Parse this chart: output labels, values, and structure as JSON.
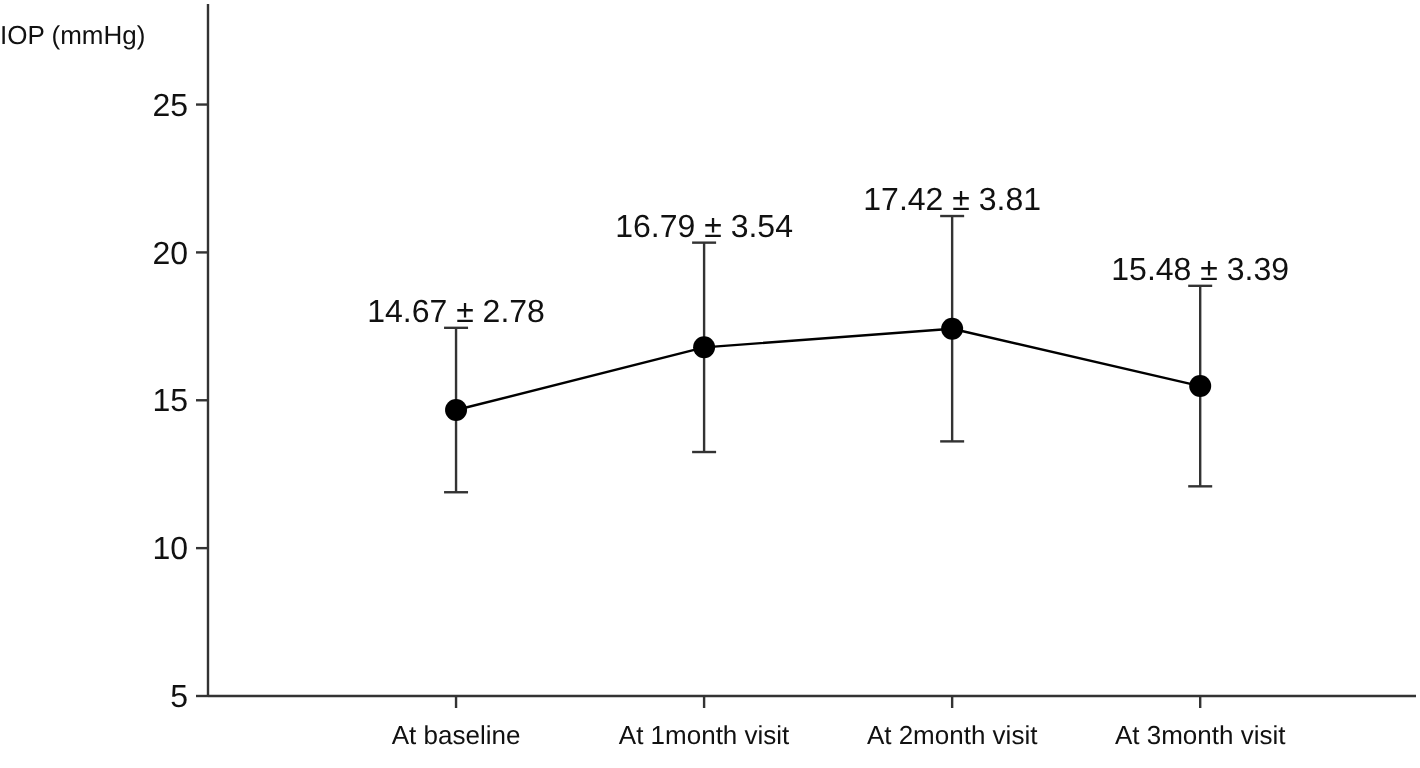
{
  "chart_data": {
    "type": "line",
    "ylabel": "IOP (mmHg)",
    "categories": [
      "At baseline",
      "At 1month visit",
      "At 2month visit",
      "At 3month visit"
    ],
    "values": [
      14.67,
      16.79,
      17.42,
      15.48
    ],
    "errors": [
      2.78,
      3.54,
      3.81,
      3.39
    ],
    "value_labels": [
      "14.67 ± 2.78",
      "16.79 ± 3.54",
      "17.42 ± 3.81",
      "15.48 ± 3.39"
    ],
    "color": "#000000",
    "marker": "circle",
    "line_style": "solid",
    "ylim": [
      5,
      28.4
    ],
    "yticks": [
      5,
      10,
      15,
      20,
      25
    ],
    "grid": false
  }
}
